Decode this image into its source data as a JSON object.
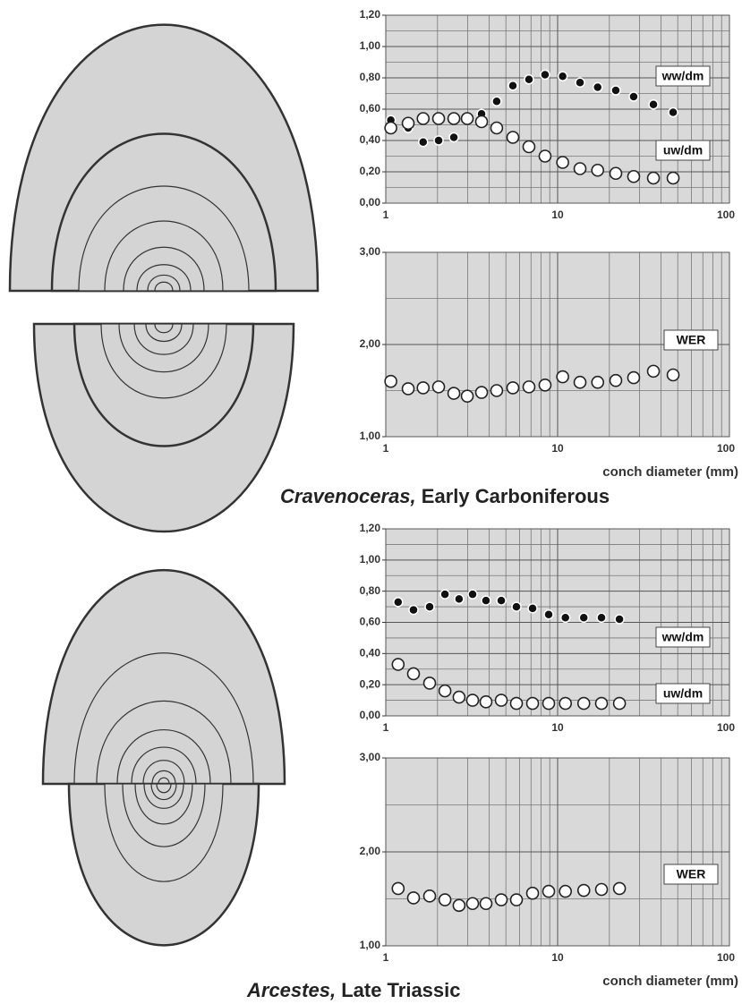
{
  "chart_data": [
    {
      "type": "scatter",
      "xlog": true,
      "grid": true,
      "x": [
        1.07,
        1.35,
        1.65,
        2.03,
        2.49,
        2.98,
        3.61,
        4.42,
        5.49,
        6.81,
        8.45,
        10.7,
        13.5,
        17.1,
        21.8,
        27.7,
        36.1,
        47.0
      ],
      "series": [
        {
          "name": "ww/dm",
          "color": "#111111",
          "values": [
            0.53,
            0.48,
            0.39,
            0.4,
            0.42,
            0.54,
            0.57,
            0.65,
            0.75,
            0.79,
            0.82,
            0.81,
            0.77,
            0.74,
            0.72,
            0.68,
            0.63,
            0.58
          ]
        },
        {
          "name": "uw/dm",
          "color": "#ffffff",
          "values": [
            0.48,
            0.51,
            0.54,
            0.54,
            0.54,
            0.54,
            0.52,
            0.48,
            0.42,
            0.36,
            0.3,
            0.26,
            0.22,
            0.21,
            0.19,
            0.17,
            0.16,
            0.16
          ]
        }
      ],
      "xlim": [
        1,
        100
      ],
      "xticks": [
        1,
        10,
        100
      ],
      "xgrid": [
        2,
        3,
        4,
        5,
        6,
        7,
        8,
        9,
        20,
        30,
        40,
        50,
        60,
        70,
        80,
        90
      ],
      "ylim": [
        0,
        1.2
      ],
      "yticks": [
        {
          "value": 0,
          "label": "0,00"
        },
        {
          "value": 0.2,
          "label": "0,20"
        },
        {
          "value": 0.4,
          "label": "0,40"
        },
        {
          "value": 0.6,
          "label": "0,60"
        },
        {
          "value": 0.8,
          "label": "0,80"
        },
        {
          "value": 1.0,
          "label": "1,00"
        },
        {
          "value": 1.2,
          "label": "1,20"
        }
      ],
      "ygrid": [
        0.1,
        0.3,
        0.5,
        0.7,
        0.9,
        1.1
      ]
    },
    {
      "type": "scatter",
      "xlog": true,
      "grid": true,
      "x": [
        1.07,
        1.35,
        1.65,
        2.03,
        2.49,
        2.98,
        3.61,
        4.42,
        5.49,
        6.81,
        8.45,
        10.7,
        13.5,
        17.1,
        21.8,
        27.7,
        36.1,
        47.0
      ],
      "series": [
        {
          "name": "WER",
          "color": "#ffffff",
          "values": [
            1.6,
            1.52,
            1.53,
            1.54,
            1.47,
            1.44,
            1.48,
            1.5,
            1.53,
            1.54,
            1.56,
            1.65,
            1.59,
            1.59,
            1.61,
            1.64,
            1.71,
            1.67
          ]
        }
      ],
      "xlim": [
        1,
        100
      ],
      "xticks": [
        1,
        10,
        100
      ],
      "xgrid": [
        2,
        3,
        4,
        5,
        6,
        7,
        8,
        9,
        20,
        30,
        40,
        50,
        60,
        70,
        80,
        90
      ],
      "x_label": "conch diameter (mm)",
      "ylim": [
        1,
        3
      ],
      "yticks": [
        {
          "value": 1,
          "label": "1,00"
        },
        {
          "value": 2,
          "label": "2,00"
        },
        {
          "value": 3,
          "label": "3,00"
        }
      ],
      "ygrid": [
        1.5,
        2.5
      ]
    },
    {
      "type": "scatter",
      "xlog": true,
      "grid": true,
      "x": [
        1.18,
        1.45,
        1.8,
        2.21,
        2.67,
        3.2,
        3.83,
        4.7,
        5.76,
        7.15,
        8.87,
        11.1,
        14.2,
        18.0,
        22.9
      ],
      "series": [
        {
          "name": "ww/dm",
          "color": "#111111",
          "values": [
            0.73,
            0.68,
            0.7,
            0.78,
            0.75,
            0.78,
            0.74,
            0.74,
            0.7,
            0.69,
            0.65,
            0.63,
            0.63,
            0.63,
            0.62
          ]
        },
        {
          "name": "uw/dm",
          "color": "#ffffff",
          "values": [
            0.33,
            0.27,
            0.21,
            0.16,
            0.12,
            0.1,
            0.09,
            0.1,
            0.08,
            0.08,
            0.08,
            0.08,
            0.08,
            0.08,
            0.08
          ]
        }
      ],
      "xlim": [
        1,
        100
      ],
      "xticks": [
        1,
        10,
        100
      ],
      "xgrid": [
        2,
        3,
        4,
        5,
        6,
        7,
        8,
        9,
        20,
        30,
        40,
        50,
        60,
        70,
        80,
        90
      ],
      "ylim": [
        0,
        1.2
      ],
      "yticks": [
        {
          "value": 0,
          "label": "0,00"
        },
        {
          "value": 0.2,
          "label": "0,20"
        },
        {
          "value": 0.4,
          "label": "0,40"
        },
        {
          "value": 0.6,
          "label": "0,60"
        },
        {
          "value": 0.8,
          "label": "0,80"
        },
        {
          "value": 1.0,
          "label": "1,00"
        },
        {
          "value": 1.2,
          "label": "1,20"
        }
      ],
      "ygrid": [
        0.1,
        0.3,
        0.5,
        0.7,
        0.9,
        1.1
      ]
    },
    {
      "type": "scatter",
      "xlog": true,
      "grid": true,
      "x": [
        1.18,
        1.45,
        1.8,
        2.21,
        2.67,
        3.2,
        3.83,
        4.7,
        5.76,
        7.15,
        8.87,
        11.1,
        14.2,
        18.0,
        22.9
      ],
      "series": [
        {
          "name": "WER",
          "color": "#ffffff",
          "values": [
            1.61,
            1.51,
            1.53,
            1.49,
            1.43,
            1.45,
            1.45,
            1.49,
            1.49,
            1.56,
            1.58,
            1.58,
            1.59,
            1.6,
            1.61
          ]
        }
      ],
      "xlim": [
        1,
        100
      ],
      "xticks": [
        1,
        10,
        100
      ],
      "xgrid": [
        2,
        3,
        4,
        5,
        6,
        7,
        8,
        9,
        20,
        30,
        40,
        50,
        60,
        70,
        80,
        90
      ],
      "x_label": "conch diameter (mm)",
      "ylim": [
        1,
        3
      ],
      "yticks": [
        {
          "value": 1,
          "label": "1,00"
        },
        {
          "value": 2,
          "label": "2,00"
        },
        {
          "value": 3,
          "label": "3,00"
        }
      ],
      "ygrid": [
        1.5,
        2.5
      ]
    }
  ],
  "captions": [
    {
      "genus": "Cravenoceras,",
      "age": "Early Carboniferous"
    },
    {
      "genus": "Arcestes,",
      "age": "Late Triassic"
    }
  ]
}
